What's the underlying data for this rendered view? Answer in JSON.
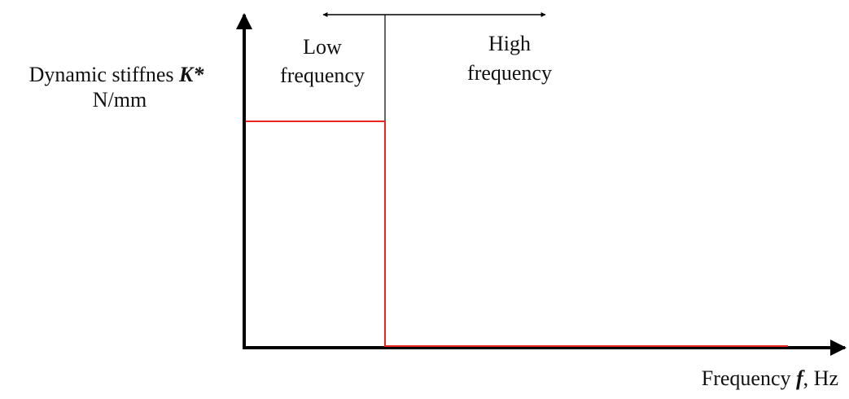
{
  "diagram": {
    "y_axis_label": {
      "line1_prefix": "Dynamic stiffnes ",
      "line1_symbol": "K*",
      "line2": "N/mm"
    },
    "x_axis_label": {
      "prefix": "Frequency ",
      "symbol": "f",
      "suffix": ", Hz"
    },
    "region_low": {
      "line1": "Low",
      "line2": "frequency"
    },
    "region_high": {
      "line1": "High",
      "line2": "frequency"
    },
    "colors": {
      "axis": "#000000",
      "curve": "#e8251f",
      "divider": "#000000"
    }
  }
}
